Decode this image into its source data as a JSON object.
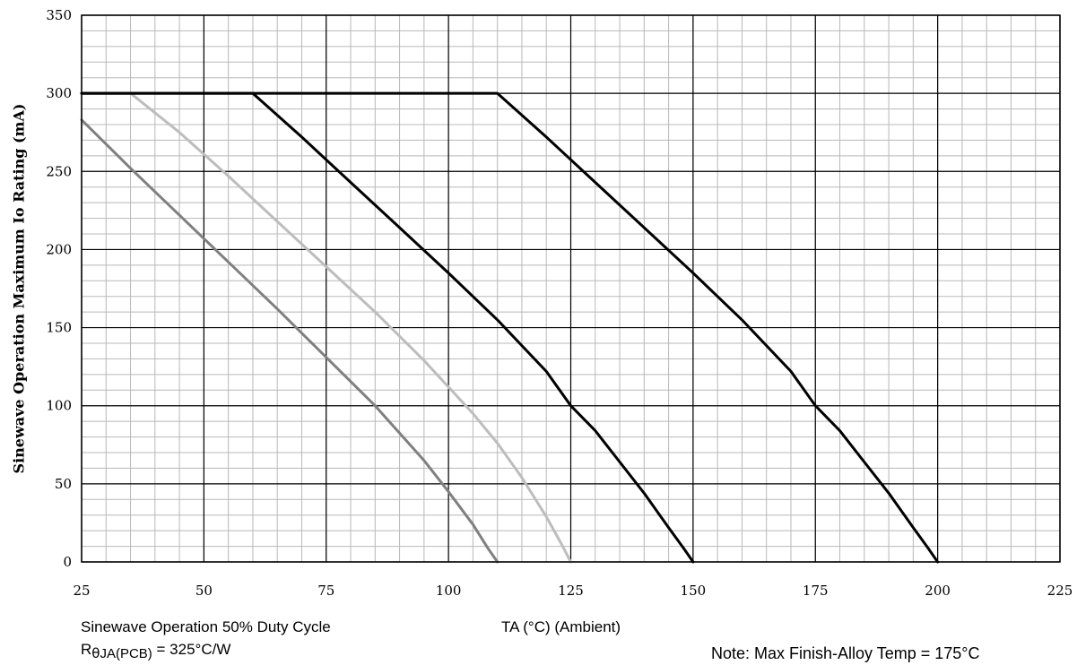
{
  "chart_data": {
    "type": "line",
    "ylabel": "Sinewave Operation Maximum Io Rating (mA)",
    "xlim": [
      25,
      225
    ],
    "ylim": [
      0,
      350
    ],
    "x_ticks": [
      25,
      50,
      75,
      100,
      125,
      150,
      175,
      200,
      225
    ],
    "y_ticks": [
      0,
      50,
      100,
      150,
      200,
      250,
      300,
      350
    ],
    "x_minor_step": 5,
    "y_minor_step": 10,
    "grid": true,
    "series": [
      {
        "color": "#808080",
        "x": [
          25,
          35,
          45,
          55,
          65,
          75,
          85,
          95,
          100,
          105,
          108,
          110
        ],
        "y": [
          283,
          252,
          222,
          192,
          162,
          131,
          100,
          65,
          45,
          24,
          9,
          0
        ]
      },
      {
        "color": "#bdbdbd",
        "x": [
          25,
          35,
          45,
          55,
          65,
          75,
          85,
          95,
          105,
          110,
          115,
          120,
          123,
          125
        ],
        "y": [
          300,
          300,
          275,
          247,
          218,
          189,
          160,
          129,
          95,
          76,
          54,
          29,
          12,
          0
        ]
      },
      {
        "color": "#000000",
        "x": [
          25,
          60,
          70,
          80,
          90,
          100,
          110,
          120,
          125,
          130,
          135,
          140,
          145,
          148,
          150
        ],
        "y": [
          300,
          300,
          272,
          243,
          214,
          185,
          155,
          122,
          100,
          84,
          64,
          44,
          22,
          9,
          0
        ]
      },
      {
        "color": "#000000",
        "x": [
          25,
          110,
          120,
          130,
          140,
          150,
          160,
          170,
          175,
          180,
          185,
          190,
          195,
          198,
          200
        ],
        "y": [
          300,
          300,
          272,
          243,
          214,
          185,
          155,
          122,
          100,
          84,
          64,
          44,
          22,
          9,
          0
        ]
      }
    ]
  },
  "notes": {
    "x_axis_title": "TA (°C)  (Ambient)",
    "duty": "Sinewave Operation 50% Duty Cycle",
    "r_prefix": "R",
    "r_symbol": "θ",
    "r_subscript": "JA(PCB)",
    "r_value": " = 325°C/W",
    "max_temp": "Note: Max Finish-Alloy Temp = 175°C"
  }
}
